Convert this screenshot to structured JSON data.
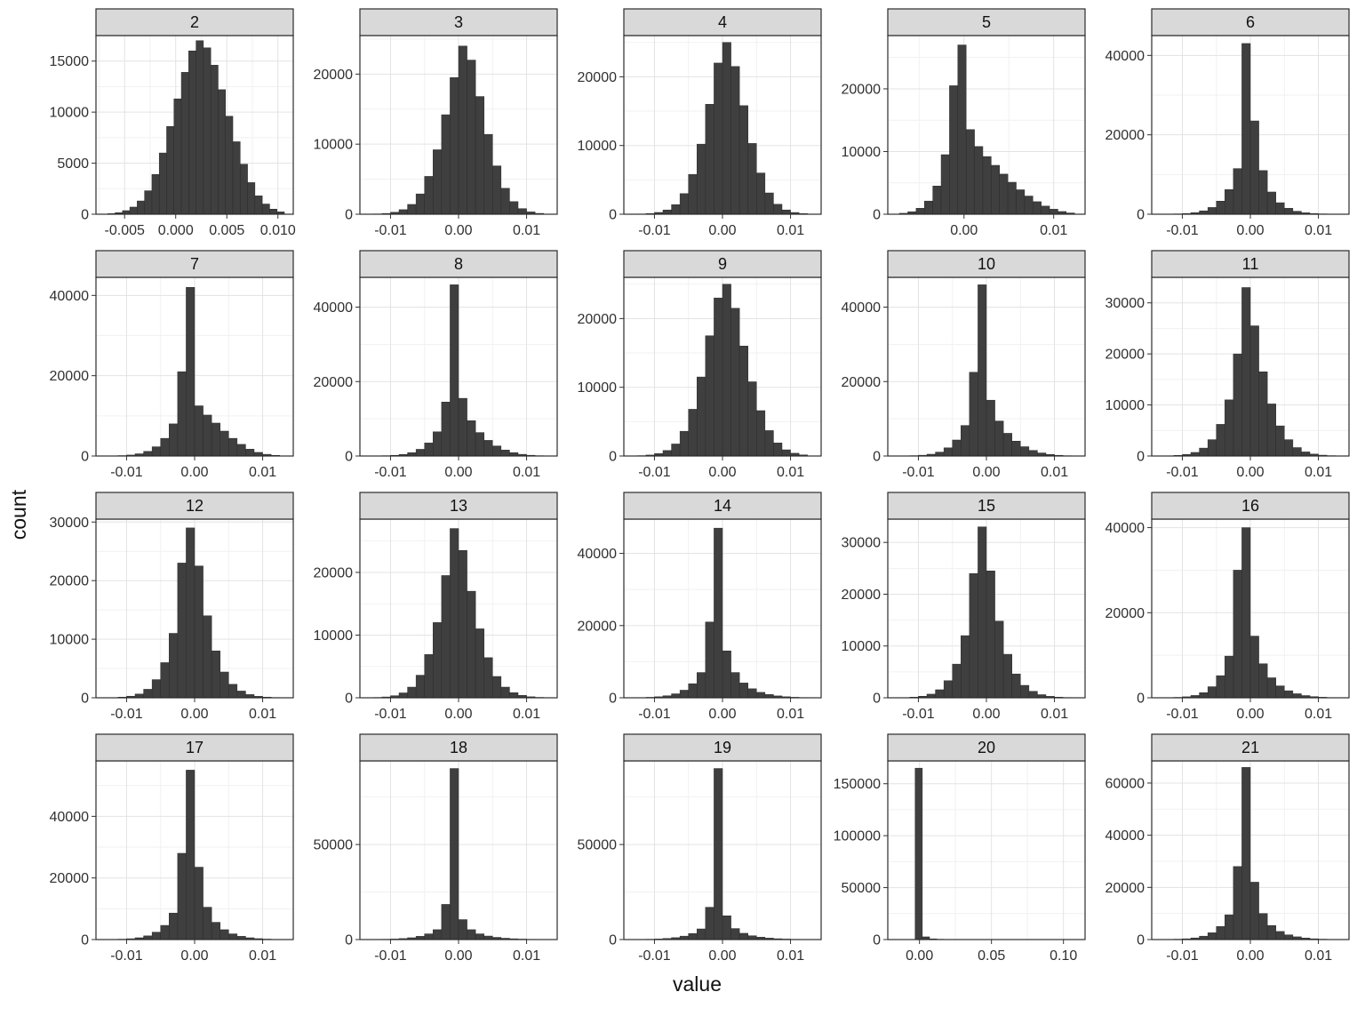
{
  "figure": {
    "x_title": "value",
    "y_title": "count"
  },
  "style": {
    "bar_fill": "#3f3f3f",
    "bar_stroke": "#2a2a2a",
    "strip_fill": "#d9d9d9",
    "strip_text": "#111111",
    "panel_border": "#2b2b2b",
    "grid_major": "#e3e3e3",
    "grid_minor": "#f1f1f1",
    "tick_color": "#333333",
    "tick_text": "#303030"
  },
  "chart_data": {
    "type": "bar",
    "subtype": "faceted_histograms",
    "title": "",
    "xlabel": "value",
    "ylabel": "count",
    "facet_titles": [
      "2",
      "3",
      "4",
      "5",
      "6",
      "7",
      "8",
      "9",
      "10",
      "11",
      "12",
      "13",
      "14",
      "15",
      "16",
      "17",
      "18",
      "19",
      "20",
      "21"
    ],
    "panels": [
      {
        "title": "2",
        "ymax": 17500,
        "yticks": [
          0,
          5000,
          10000,
          15000
        ],
        "xrange": [
          -0.0078,
          0.0115
        ],
        "bin_start": -0.00665,
        "bin_width": 0.00072,
        "xticks": [
          {
            "v": -0.005,
            "l": "-0.005"
          },
          {
            "v": 0,
            "l": "0.000"
          },
          {
            "v": 0.005,
            "l": "0.005"
          },
          {
            "v": 0.01,
            "l": "0.010"
          }
        ],
        "bars": [
          60,
          150,
          350,
          700,
          1300,
          2300,
          3900,
          6000,
          8600,
          11300,
          13900,
          16000,
          17000,
          16300,
          14600,
          12200,
          9600,
          7100,
          4900,
          3100,
          1800,
          1000,
          500,
          230
        ]
      },
      {
        "title": "3",
        "ymax": 25500,
        "yticks": [
          0,
          10000,
          20000
        ],
        "xrange": [
          -0.0145,
          0.0145
        ],
        "bin_start": -0.0125,
        "bin_width": 0.00125,
        "xticks": [
          {
            "v": -0.01,
            "l": "-0.01"
          },
          {
            "v": 0,
            "l": "0.00"
          },
          {
            "v": 0.01,
            "l": "0.01"
          }
        ],
        "bars": [
          40,
          110,
          280,
          650,
          1400,
          2900,
          5400,
          9200,
          14200,
          19500,
          24000,
          22000,
          16800,
          11400,
          6900,
          3700,
          1800,
          800,
          330,
          120
        ]
      },
      {
        "title": "4",
        "ymax": 26000,
        "yticks": [
          0,
          10000,
          20000
        ],
        "xrange": [
          -0.0145,
          0.0145
        ],
        "bin_start": -0.0125,
        "bin_width": 0.00125,
        "xticks": [
          {
            "v": -0.01,
            "l": "-0.01"
          },
          {
            "v": 0,
            "l": "0.00"
          },
          {
            "v": 0.01,
            "l": "0.01"
          }
        ],
        "bars": [
          35,
          100,
          260,
          620,
          1400,
          3000,
          5800,
          10200,
          16000,
          22000,
          25000,
          21500,
          15800,
          10300,
          6000,
          3100,
          1450,
          620,
          250,
          90
        ]
      },
      {
        "title": "5",
        "ymax": 28500,
        "yticks": [
          0,
          10000,
          20000
        ],
        "xrange": [
          -0.0085,
          0.0135
        ],
        "bin_start": -0.0072,
        "bin_width": 0.00093,
        "xticks": [
          {
            "v": 0,
            "l": "0.00"
          },
          {
            "v": 0.01,
            "l": "0.01"
          }
        ],
        "bars": [
          150,
          400,
          950,
          2100,
          4500,
          9500,
          20500,
          27000,
          13500,
          10800,
          9200,
          7800,
          6400,
          5100,
          3900,
          2900,
          2000,
          1300,
          800,
          430,
          200
        ]
      },
      {
        "title": "6",
        "ymax": 45000,
        "yticks": [
          0,
          20000,
          40000
        ],
        "xrange": [
          -0.0145,
          0.0145
        ],
        "bin_start": -0.0125,
        "bin_width": 0.00125,
        "xticks": [
          {
            "v": -0.01,
            "l": "-0.01"
          },
          {
            "v": 0,
            "l": "0.00"
          },
          {
            "v": 0.01,
            "l": "0.01"
          }
        ],
        "bars": [
          30,
          80,
          180,
          400,
          850,
          1700,
          3300,
          6200,
          11500,
          43000,
          23500,
          11000,
          5600,
          2900,
          1500,
          750,
          360,
          170,
          80,
          35
        ]
      },
      {
        "title": "7",
        "ymax": 44500,
        "yticks": [
          0,
          20000,
          40000
        ],
        "xrange": [
          -0.0145,
          0.0145
        ],
        "bin_start": -0.0125,
        "bin_width": 0.00125,
        "xticks": [
          {
            "v": -0.01,
            "l": "-0.01"
          },
          {
            "v": 0,
            "l": "0.00"
          },
          {
            "v": 0.01,
            "l": "0.01"
          }
        ],
        "bars": [
          40,
          100,
          240,
          550,
          1150,
          2300,
          4400,
          8000,
          21000,
          42000,
          12500,
          10200,
          8200,
          6200,
          4400,
          2900,
          1700,
          900,
          420,
          170
        ]
      },
      {
        "title": "8",
        "ymax": 48000,
        "yticks": [
          0,
          20000,
          40000
        ],
        "xrange": [
          -0.0145,
          0.0145
        ],
        "bin_start": -0.0125,
        "bin_width": 0.00125,
        "xticks": [
          {
            "v": -0.01,
            "l": "-0.01"
          },
          {
            "v": 0,
            "l": "0.00"
          },
          {
            "v": 0.01,
            "l": "0.01"
          }
        ],
        "bars": [
          30,
          80,
          180,
          420,
          900,
          1800,
          3500,
          6500,
          14500,
          46000,
          15500,
          9500,
          6300,
          4200,
          2700,
          1600,
          900,
          450,
          200,
          80
        ]
      },
      {
        "title": "9",
        "ymax": 26000,
        "yticks": [
          0,
          10000,
          20000
        ],
        "xrange": [
          -0.0145,
          0.0145
        ],
        "bin_start": -0.0125,
        "bin_width": 0.00125,
        "xticks": [
          {
            "v": -0.01,
            "l": "-0.01"
          },
          {
            "v": 0,
            "l": "0.00"
          },
          {
            "v": 0.01,
            "l": "0.01"
          }
        ],
        "bars": [
          50,
          140,
          350,
          800,
          1750,
          3600,
          6800,
          11500,
          17500,
          23000,
          25000,
          21500,
          16000,
          10800,
          6600,
          3700,
          1900,
          900,
          400,
          160
        ]
      },
      {
        "title": "10",
        "ymax": 48000,
        "yticks": [
          0,
          20000,
          40000
        ],
        "xrange": [
          -0.0145,
          0.0145
        ],
        "bin_start": -0.0125,
        "bin_width": 0.00125,
        "xticks": [
          {
            "v": -0.01,
            "l": "-0.01"
          },
          {
            "v": 0,
            "l": "0.00"
          },
          {
            "v": 0.01,
            "l": "0.01"
          }
        ],
        "bars": [
          35,
          90,
          210,
          480,
          1050,
          2200,
          4300,
          8200,
          22500,
          46000,
          15000,
          9400,
          6100,
          4000,
          2500,
          1500,
          820,
          420,
          190,
          75
        ]
      },
      {
        "title": "11",
        "ymax": 35000,
        "yticks": [
          0,
          10000,
          20000,
          30000
        ],
        "xrange": [
          -0.0145,
          0.0145
        ],
        "bin_start": -0.0125,
        "bin_width": 0.00125,
        "xticks": [
          {
            "v": -0.01,
            "l": "-0.01"
          },
          {
            "v": 0,
            "l": "0.00"
          },
          {
            "v": 0.01,
            "l": "0.01"
          }
        ],
        "bars": [
          45,
          120,
          300,
          700,
          1550,
          3200,
          6200,
          11000,
          20000,
          33000,
          25500,
          16500,
          10200,
          5900,
          3200,
          1650,
          800,
          380,
          165,
          65
        ]
      },
      {
        "title": "12",
        "ymax": 30500,
        "yticks": [
          0,
          10000,
          20000,
          30000
        ],
        "xrange": [
          -0.0145,
          0.0145
        ],
        "bin_start": -0.0125,
        "bin_width": 0.00125,
        "xticks": [
          {
            "v": -0.01,
            "l": "-0.01"
          },
          {
            "v": 0,
            "l": "0.00"
          },
          {
            "v": 0.01,
            "l": "0.01"
          }
        ],
        "bars": [
          40,
          110,
          270,
          640,
          1450,
          3100,
          6000,
          11000,
          23000,
          29000,
          22500,
          14000,
          8000,
          4400,
          2300,
          1150,
          550,
          250,
          110,
          45
        ]
      },
      {
        "title": "13",
        "ymax": 28500,
        "yticks": [
          0,
          10000,
          20000
        ],
        "xrange": [
          -0.0145,
          0.0145
        ],
        "bin_start": -0.0125,
        "bin_width": 0.00125,
        "xticks": [
          {
            "v": -0.01,
            "l": "-0.01"
          },
          {
            "v": 0,
            "l": "0.00"
          },
          {
            "v": 0.01,
            "l": "0.01"
          }
        ],
        "bars": [
          50,
          130,
          330,
          780,
          1700,
          3600,
          6900,
          12000,
          19500,
          27000,
          23500,
          17000,
          11000,
          6400,
          3400,
          1700,
          820,
          380,
          160,
          65
        ]
      },
      {
        "title": "14",
        "ymax": 49500,
        "yticks": [
          0,
          20000,
          40000
        ],
        "xrange": [
          -0.0145,
          0.0145
        ],
        "bin_start": -0.0125,
        "bin_width": 0.00125,
        "xticks": [
          {
            "v": -0.01,
            "l": "-0.01"
          },
          {
            "v": 0,
            "l": "0.00"
          },
          {
            "v": 0.01,
            "l": "0.01"
          }
        ],
        "bars": [
          60,
          130,
          280,
          560,
          1100,
          2100,
          3900,
          7000,
          21000,
          47000,
          13000,
          7000,
          4100,
          2500,
          1500,
          900,
          520,
          280,
          140,
          65
        ]
      },
      {
        "title": "15",
        "ymax": 34500,
        "yticks": [
          0,
          10000,
          20000,
          30000
        ],
        "xrange": [
          -0.0145,
          0.0145
        ],
        "bin_start": -0.0125,
        "bin_width": 0.00125,
        "xticks": [
          {
            "v": -0.01,
            "l": "-0.01"
          },
          {
            "v": 0,
            "l": "0.00"
          },
          {
            "v": 0.01,
            "l": "0.01"
          }
        ],
        "bars": [
          45,
          120,
          300,
          700,
          1550,
          3300,
          6500,
          12000,
          24000,
          33000,
          24500,
          14800,
          8400,
          4600,
          2400,
          1250,
          600,
          280,
          120,
          50
        ]
      },
      {
        "title": "16",
        "ymax": 42000,
        "yticks": [
          0,
          20000,
          40000
        ],
        "xrange": [
          -0.0145,
          0.0145
        ],
        "bin_start": -0.0125,
        "bin_width": 0.00125,
        "xticks": [
          {
            "v": -0.01,
            "l": "-0.01"
          },
          {
            "v": 0,
            "l": "0.00"
          },
          {
            "v": 0.01,
            "l": "0.01"
          }
        ],
        "bars": [
          35,
          95,
          230,
          540,
          1200,
          2600,
          5200,
          9800,
          30000,
          40000,
          14500,
          8000,
          4700,
          2800,
          1650,
          950,
          520,
          270,
          130,
          55
        ]
      },
      {
        "title": "17",
        "ymax": 58000,
        "yticks": [
          0,
          20000,
          40000
        ],
        "xrange": [
          -0.0145,
          0.0145
        ],
        "bin_start": -0.0125,
        "bin_width": 0.00125,
        "xticks": [
          {
            "v": -0.01,
            "l": "-0.01"
          },
          {
            "v": 0,
            "l": "0.00"
          },
          {
            "v": 0.01,
            "l": "0.01"
          }
        ],
        "bars": [
          50,
          120,
          270,
          580,
          1200,
          2400,
          4600,
          8600,
          28000,
          55000,
          23500,
          10500,
          5600,
          3200,
          1850,
          1050,
          580,
          300,
          145,
          60
        ]
      },
      {
        "title": "18",
        "ymax": 94000,
        "yticks": [
          0,
          50000
        ],
        "xrange": [
          -0.0145,
          0.0145
        ],
        "bin_start": -0.0125,
        "bin_width": 0.00125,
        "xticks": [
          {
            "v": -0.01,
            "l": "-0.01"
          },
          {
            "v": 0,
            "l": "0.00"
          },
          {
            "v": 0.01,
            "l": "0.01"
          }
        ],
        "bars": [
          70,
          140,
          280,
          520,
          950,
          1700,
          3000,
          5200,
          18500,
          90000,
          10500,
          5200,
          3000,
          1850,
          1150,
          700,
          420,
          240,
          125,
          60
        ]
      },
      {
        "title": "19",
        "ymax": 94000,
        "yticks": [
          0,
          50000
        ],
        "xrange": [
          -0.0145,
          0.0145
        ],
        "bin_start": -0.0125,
        "bin_width": 0.00125,
        "xticks": [
          {
            "v": -0.01,
            "l": "-0.01"
          },
          {
            "v": 0,
            "l": "0.00"
          },
          {
            "v": 0.01,
            "l": "0.01"
          }
        ],
        "bars": [
          75,
          150,
          300,
          560,
          1000,
          1800,
          3200,
          5600,
          17000,
          90000,
          12500,
          5800,
          3300,
          2000,
          1250,
          760,
          450,
          260,
          135,
          65
        ]
      },
      {
        "title": "20",
        "ymax": 172000,
        "yticks": [
          0,
          50000,
          100000,
          150000
        ],
        "xrange": [
          -0.022,
          0.115
        ],
        "bin_start": -0.003,
        "bin_width": 0.005,
        "xticks": [
          {
            "v": 0,
            "l": "0.00"
          },
          {
            "v": 0.05,
            "l": "0.05"
          },
          {
            "v": 0.1,
            "l": "0.10"
          }
        ],
        "bars": [
          165000,
          2600,
          700,
          300,
          160,
          95,
          60,
          40,
          28,
          20,
          14,
          10,
          8,
          6,
          4,
          3,
          2,
          2,
          1,
          1
        ]
      },
      {
        "title": "21",
        "ymax": 68500,
        "yticks": [
          0,
          20000,
          40000,
          60000
        ],
        "xrange": [
          -0.0145,
          0.0145
        ],
        "bin_start": -0.0125,
        "bin_width": 0.00125,
        "xticks": [
          {
            "v": -0.01,
            "l": "-0.01"
          },
          {
            "v": 0,
            "l": "0.00"
          },
          {
            "v": 0.01,
            "l": "0.01"
          }
        ],
        "bars": [
          55,
          130,
          290,
          620,
          1300,
          2600,
          5000,
          9500,
          28000,
          66000,
          22000,
          10000,
          5400,
          3100,
          1800,
          1050,
          580,
          300,
          145,
          60
        ]
      }
    ]
  }
}
